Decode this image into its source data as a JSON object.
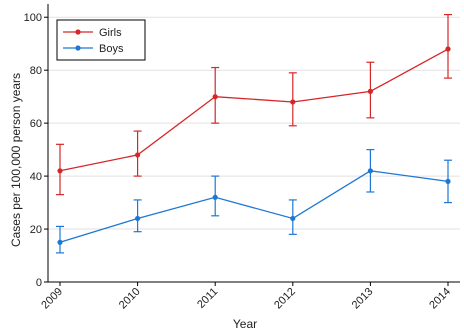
{
  "chart_data": {
    "type": "line",
    "title": "",
    "xlabel": "Year",
    "ylabel": "Cases per 100,000 person years",
    "ylim": [
      0,
      105
    ],
    "yticks": [
      0,
      20,
      40,
      60,
      80,
      100
    ],
    "grid": true,
    "legend_position": "top-left",
    "x": [
      "2009",
      "2010",
      "2011",
      "2012",
      "2013",
      "2014"
    ],
    "series": [
      {
        "name": "Girls",
        "color": "#d62728",
        "values": [
          42,
          48,
          70,
          68,
          72,
          88
        ],
        "ci_low": [
          33,
          40,
          60,
          59,
          62,
          77
        ],
        "ci_high": [
          52,
          57,
          81,
          79,
          83,
          101
        ]
      },
      {
        "name": "Boys",
        "color": "#1f77d4",
        "values": [
          15,
          24,
          32,
          24,
          42,
          38
        ],
        "ci_low": [
          11,
          19,
          25,
          18,
          34,
          30
        ],
        "ci_high": [
          21,
          31,
          40,
          31,
          50,
          46
        ]
      }
    ]
  }
}
